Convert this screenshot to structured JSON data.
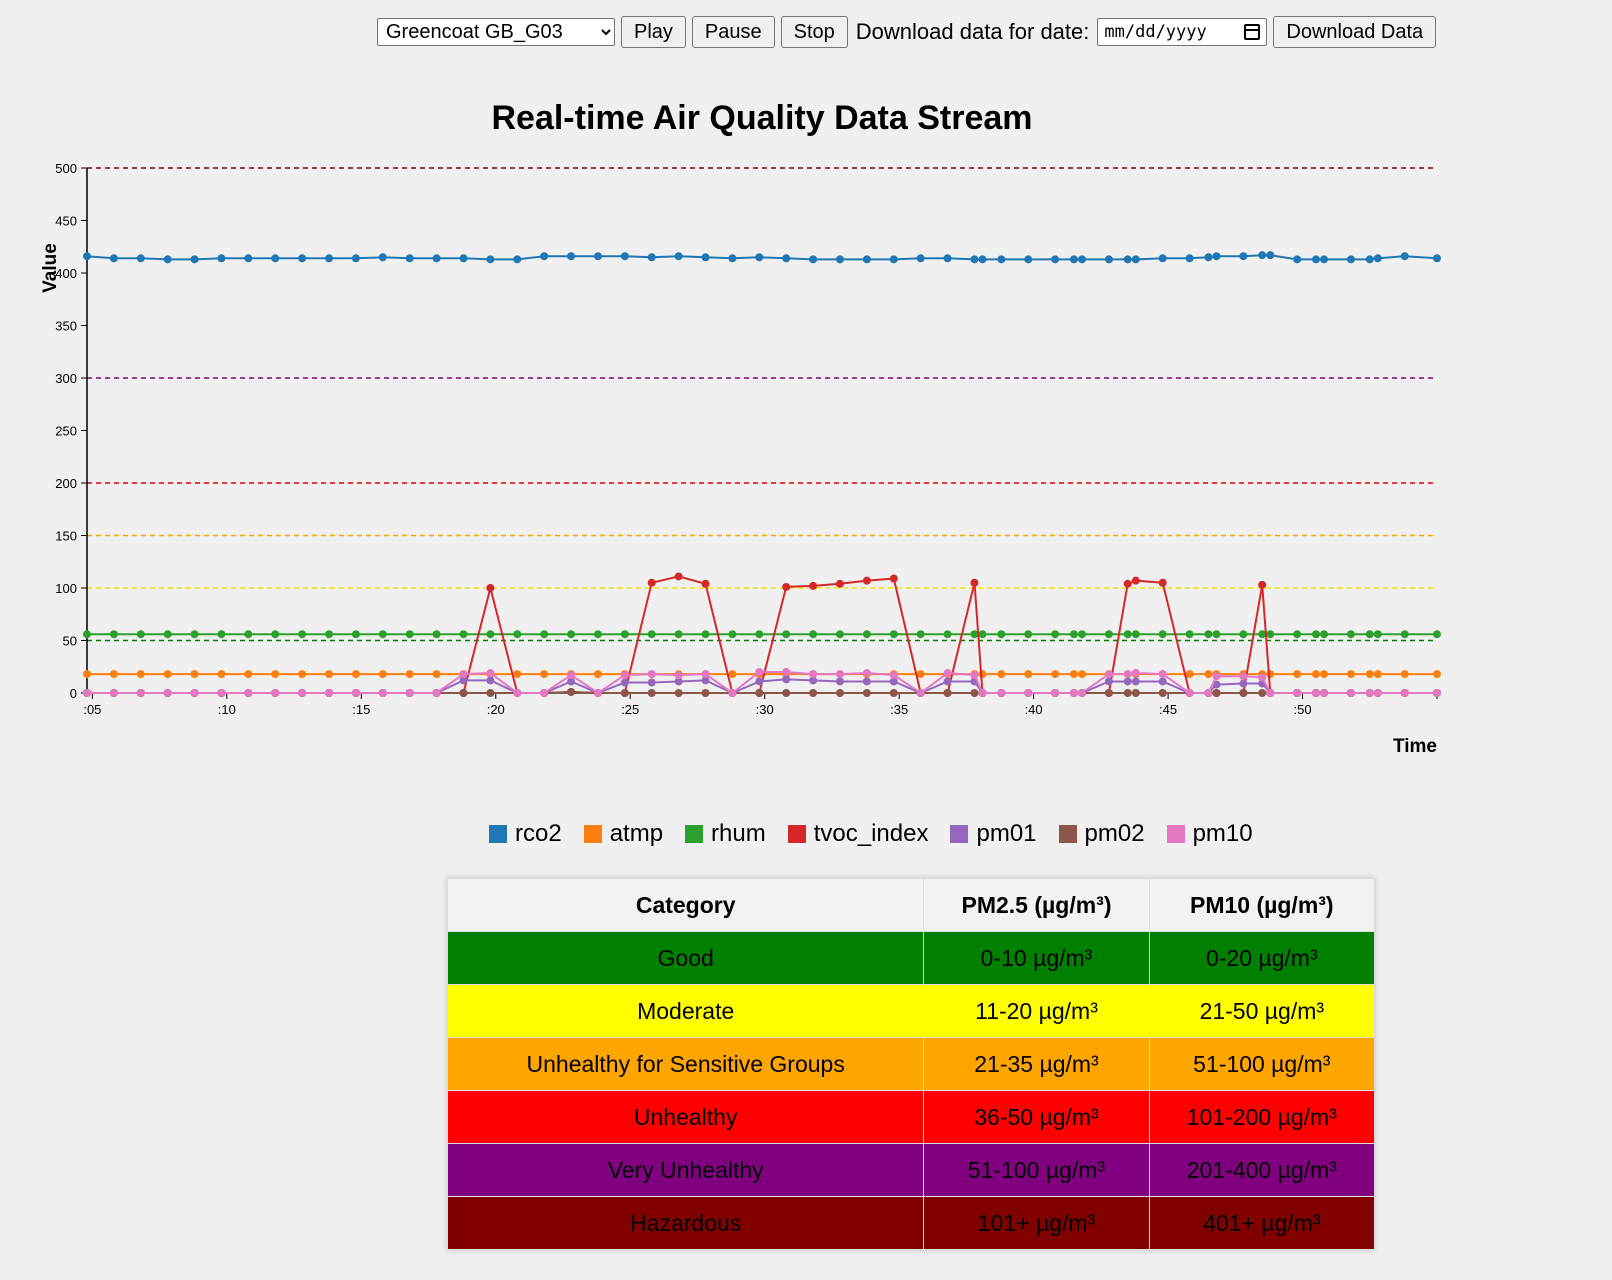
{
  "controls": {
    "station_selected": "Greencoat GB_G03",
    "play_label": "Play",
    "pause_label": "Pause",
    "stop_label": "Stop",
    "date_label": "Download data for date:",
    "date_placeholder": "mm/dd/yyyy",
    "download_label": "Download Data"
  },
  "legend": [
    {
      "name": "rco2",
      "color": "#1f77b4"
    },
    {
      "name": "atmp",
      "color": "#ff7f0e"
    },
    {
      "name": "rhum",
      "color": "#2ca02c"
    },
    {
      "name": "tvoc_index",
      "color": "#d62728"
    },
    {
      "name": "pm01",
      "color": "#9467bd"
    },
    {
      "name": "pm02",
      "color": "#8c564b"
    },
    {
      "name": "pm10",
      "color": "#e377c2"
    }
  ],
  "chart_data": {
    "type": "line",
    "title": "Real-time Air Quality Data Stream",
    "xlabel": "Time",
    "ylabel": "Value",
    "ylim": [
      0,
      500
    ],
    "xlim": [
      4.8,
      55
    ],
    "y_ticks": [
      0,
      50,
      100,
      150,
      200,
      250,
      300,
      350,
      400,
      450,
      500
    ],
    "x_ticks": [
      {
        "value": 5,
        "label": ":05"
      },
      {
        "value": 10,
        "label": ":10"
      },
      {
        "value": 15,
        "label": ":15"
      },
      {
        "value": 20,
        "label": ":20"
      },
      {
        "value": 25,
        "label": ":25"
      },
      {
        "value": 30,
        "label": ":30"
      },
      {
        "value": 35,
        "label": ":35"
      },
      {
        "value": 40,
        "label": ":40"
      },
      {
        "value": 45,
        "label": ":45"
      },
      {
        "value": 50,
        "label": ":50"
      }
    ],
    "thresholds": [
      {
        "value": 500,
        "color": "#8b0000"
      },
      {
        "value": 300,
        "color": "#800080"
      },
      {
        "value": 200,
        "color": "#e00000"
      },
      {
        "value": 150,
        "color": "#ffa500"
      },
      {
        "value": 100,
        "color": "#f2e600"
      },
      {
        "value": 50,
        "color": "#008000"
      }
    ],
    "x": [
      4.8,
      5.8,
      6.8,
      7.8,
      8.8,
      9.8,
      10.8,
      11.8,
      12.8,
      13.8,
      14.8,
      15.8,
      16.8,
      17.8,
      18.8,
      19.8,
      20.8,
      21.8,
      22.8,
      23.8,
      24.8,
      25.8,
      26.8,
      27.8,
      28.8,
      29.8,
      30.8,
      31.8,
      32.8,
      33.8,
      34.8,
      35.8,
      36.8,
      37.8,
      38.1,
      38.8,
      39.8,
      40.8,
      41.5,
      41.8,
      42.8,
      43.5,
      43.8,
      44.8,
      45.8,
      46.5,
      46.8,
      47.8,
      48.5,
      48.8,
      49.8,
      50.5,
      50.8,
      51.8,
      52.5,
      52.8,
      53.8,
      55
    ],
    "series": [
      {
        "name": "rco2",
        "color": "#1f77b4",
        "values": [
          416,
          414,
          414,
          413,
          413,
          414,
          414,
          414,
          414,
          414,
          414,
          415,
          414,
          414,
          414,
          413,
          413,
          416,
          416,
          416,
          416,
          415,
          416,
          415,
          414,
          415,
          414,
          413,
          413,
          413,
          413,
          414,
          414,
          413,
          413,
          413,
          413,
          413,
          413,
          413,
          413,
          413,
          413,
          414,
          414,
          415,
          416,
          416,
          417,
          417,
          413,
          413,
          413,
          413,
          413,
          414,
          416,
          414
        ]
      },
      {
        "name": "atmp",
        "color": "#ff7f0e",
        "values": [
          18,
          18,
          18,
          18,
          18,
          18,
          18,
          18,
          18,
          18,
          18,
          18,
          18,
          18,
          18,
          18,
          18,
          18,
          18,
          18,
          18,
          18,
          18,
          18,
          18,
          18,
          18,
          18,
          18,
          18,
          18,
          18,
          18,
          18,
          18,
          18,
          18,
          18,
          18,
          18,
          18,
          18,
          18,
          18,
          18,
          18,
          18,
          18,
          18,
          18,
          18,
          18,
          18,
          18,
          18,
          18,
          18,
          18
        ]
      },
      {
        "name": "rhum",
        "color": "#2ca02c",
        "values": [
          56,
          56,
          56,
          56,
          56,
          56,
          56,
          56,
          56,
          56,
          56,
          56,
          56,
          56,
          56,
          56,
          56,
          56,
          56,
          56,
          56,
          56,
          56,
          56,
          56,
          56,
          56,
          56,
          56,
          56,
          56,
          56,
          56,
          56,
          56,
          56,
          56,
          56,
          56,
          56,
          56,
          56,
          56,
          56,
          56,
          56,
          56,
          56,
          56,
          56,
          56,
          56,
          56,
          56,
          56,
          56,
          56,
          56
        ]
      },
      {
        "name": "tvoc_index",
        "color": "#d62728",
        "values": [
          0,
          0,
          0,
          0,
          0,
          0,
          0,
          0,
          0,
          0,
          0,
          0,
          0,
          0,
          0,
          100,
          0,
          0,
          1,
          0,
          0,
          105,
          111,
          104,
          0,
          0,
          101,
          102,
          104,
          107,
          109,
          0,
          0,
          105,
          0,
          0,
          0,
          0,
          0,
          0,
          0,
          104,
          107,
          105,
          0,
          0,
          0,
          0,
          103,
          0,
          0,
          0,
          0,
          0,
          0,
          0,
          0,
          0
        ]
      },
      {
        "name": "pm01",
        "color": "#9467bd",
        "values": [
          0,
          0,
          0,
          0,
          0,
          0,
          0,
          0,
          0,
          0,
          0,
          0,
          0,
          0,
          12,
          12,
          0,
          0,
          11,
          0,
          10,
          10,
          11,
          12,
          0,
          11,
          13,
          12,
          11,
          11,
          11,
          0,
          11,
          11,
          0,
          0,
          0,
          0,
          0,
          0,
          11,
          11,
          11,
          11,
          0,
          0,
          8,
          9,
          9,
          0,
          0,
          0,
          0,
          0,
          0,
          0,
          0,
          0
        ]
      },
      {
        "name": "pm02",
        "color": "#8c564b",
        "values": [
          0,
          0,
          0,
          0,
          0,
          0,
          0,
          0,
          0,
          0,
          0,
          0,
          0,
          0,
          0,
          0,
          0,
          0,
          1,
          0,
          0,
          0,
          0,
          0,
          0,
          0,
          0,
          0,
          0,
          0,
          0,
          0,
          0,
          0,
          0,
          0,
          0,
          0,
          0,
          0,
          0,
          0,
          0,
          0,
          0,
          0,
          0,
          0,
          0,
          0,
          0,
          0,
          0,
          0,
          0,
          0,
          0,
          0
        ]
      },
      {
        "name": "pm10",
        "color": "#e377c2",
        "values": [
          0,
          0,
          0,
          0,
          0,
          0,
          0,
          0,
          0,
          0,
          0,
          0,
          0,
          0,
          18,
          19,
          0,
          0,
          17,
          0,
          17,
          18,
          17,
          18,
          0,
          20,
          20,
          18,
          18,
          19,
          17,
          0,
          19,
          17,
          0,
          0,
          0,
          0,
          0,
          0,
          18,
          18,
          19,
          18,
          0,
          0,
          16,
          16,
          15,
          0,
          0,
          0,
          0,
          0,
          0,
          0,
          0,
          0
        ]
      }
    ]
  },
  "aqi_table": {
    "headers": [
      "Category",
      "PM2.5 (µg/m³)",
      "PM10 (µg/m³)"
    ],
    "rows": [
      {
        "category": "Good",
        "pm25": "0-10 µg/m³",
        "pm10": "0-20 µg/m³",
        "bg": "#008000"
      },
      {
        "category": "Moderate",
        "pm25": "11-20 µg/m³",
        "pm10": "21-50 µg/m³",
        "bg": "#ffff00"
      },
      {
        "category": "Unhealthy for Sensitive Groups",
        "pm25": "21-35 µg/m³",
        "pm10": "51-100 µg/m³",
        "bg": "#ffa500"
      },
      {
        "category": "Unhealthy",
        "pm25": "36-50 µg/m³",
        "pm10": "101-200 µg/m³",
        "bg": "#ff0000"
      },
      {
        "category": "Very Unhealthy",
        "pm25": "51-100 µg/m³",
        "pm10": "201-400 µg/m³",
        "bg": "#800080"
      },
      {
        "category": "Hazardous",
        "pm25": "101+ µg/m³",
        "pm10": "401+ µg/m³",
        "bg": "#800000"
      }
    ]
  }
}
